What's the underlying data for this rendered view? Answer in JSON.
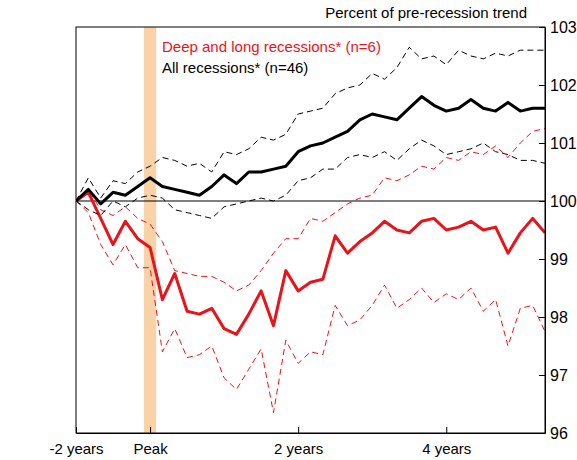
{
  "chart_data": {
    "type": "line",
    "ylabel": "Percent of pre-recession trend",
    "x": [
      -12,
      -10,
      -8,
      -6,
      -4,
      -2,
      0,
      2,
      4,
      6,
      8,
      10,
      12,
      14,
      16,
      18,
      20,
      22,
      24,
      26,
      28,
      30,
      32,
      34,
      36,
      38,
      40,
      42,
      44,
      46,
      48,
      50,
      52,
      54,
      56,
      58,
      60,
      62,
      64
    ],
    "xlim": [
      -12,
      64
    ],
    "xticks": [
      {
        "value": -12,
        "label": "-2 years"
      },
      {
        "value": 0,
        "label": "Peak"
      },
      {
        "value": 24,
        "label": "2 years"
      },
      {
        "value": 48,
        "label": "4 years"
      }
    ],
    "ylim": [
      96,
      103
    ],
    "yticks": [
      96,
      97,
      98,
      99,
      100,
      101,
      102,
      103
    ],
    "grid": false,
    "legend": "upper left",
    "reference_y": 100,
    "highlight_x": [
      -1,
      1
    ],
    "series": [
      {
        "name": "Deep and long recessions* (n=6)",
        "color": "#e8141c",
        "line_style": "solid",
        "values": [
          100.0,
          100.15,
          99.7,
          99.25,
          99.65,
          99.35,
          99.2,
          98.3,
          98.75,
          98.1,
          98.05,
          98.15,
          97.8,
          97.7,
          98.05,
          98.45,
          97.85,
          98.8,
          98.45,
          98.6,
          98.65,
          99.4,
          99.1,
          99.3,
          99.45,
          99.65,
          99.5,
          99.45,
          99.65,
          99.7,
          99.5,
          99.55,
          99.65,
          99.5,
          99.55,
          99.1,
          99.45,
          99.7,
          99.45
        ],
        "upper": [
          100.0,
          100.2,
          99.85,
          99.75,
          99.9,
          99.7,
          99.6,
          99.3,
          98.8,
          98.75,
          98.7,
          98.7,
          98.6,
          98.45,
          98.55,
          98.8,
          99.1,
          99.35,
          99.35,
          99.7,
          99.65,
          99.8,
          99.95,
          100.05,
          100.1,
          100.4,
          100.35,
          100.45,
          100.6,
          100.55,
          100.75,
          100.7,
          100.85,
          100.8,
          100.95,
          100.75,
          101.0,
          101.2,
          101.25
        ],
        "lower": [
          100.0,
          99.8,
          99.25,
          98.9,
          99.25,
          98.85,
          98.85,
          97.4,
          97.8,
          97.3,
          97.35,
          97.5,
          96.95,
          96.75,
          97.1,
          97.45,
          96.35,
          97.6,
          97.2,
          97.4,
          97.35,
          98.2,
          97.85,
          97.95,
          98.2,
          98.55,
          98.15,
          98.3,
          98.5,
          98.25,
          98.4,
          98.3,
          98.5,
          98.1,
          98.3,
          97.5,
          98.15,
          98.2,
          97.75
        ]
      },
      {
        "name": "All recessions* (n=46)",
        "color": "#000000",
        "line_style": "solid",
        "values": [
          100.0,
          100.2,
          99.95,
          100.15,
          100.1,
          100.25,
          100.4,
          100.25,
          100.2,
          100.15,
          100.1,
          100.25,
          100.45,
          100.3,
          100.5,
          100.5,
          100.55,
          100.6,
          100.85,
          100.95,
          101.0,
          101.1,
          101.2,
          101.4,
          101.5,
          101.45,
          101.4,
          101.6,
          101.8,
          101.65,
          101.55,
          101.6,
          101.75,
          101.6,
          101.55,
          101.7,
          101.55,
          101.6,
          101.6
        ],
        "upper": [
          100.0,
          100.4,
          100.05,
          100.35,
          100.3,
          100.5,
          100.6,
          100.75,
          100.7,
          100.6,
          100.65,
          100.5,
          100.85,
          100.8,
          100.9,
          101.1,
          101.05,
          101.15,
          101.5,
          101.55,
          101.6,
          101.85,
          101.95,
          102.0,
          102.2,
          102.1,
          102.3,
          102.65,
          102.45,
          102.5,
          102.35,
          102.6,
          102.5,
          102.45,
          102.55,
          102.5,
          102.6,
          102.6,
          102.6
        ],
        "lower": [
          100.0,
          99.85,
          99.75,
          100.0,
          99.9,
          100.05,
          100.1,
          100.05,
          99.85,
          99.8,
          99.75,
          99.7,
          99.9,
          99.95,
          100.0,
          100.05,
          100.0,
          100.1,
          100.35,
          100.4,
          100.55,
          100.55,
          100.75,
          100.8,
          100.75,
          100.85,
          100.7,
          100.9,
          101.05,
          100.95,
          100.8,
          100.85,
          100.9,
          101.0,
          100.85,
          100.8,
          100.7,
          100.7,
          100.65
        ]
      }
    ]
  }
}
